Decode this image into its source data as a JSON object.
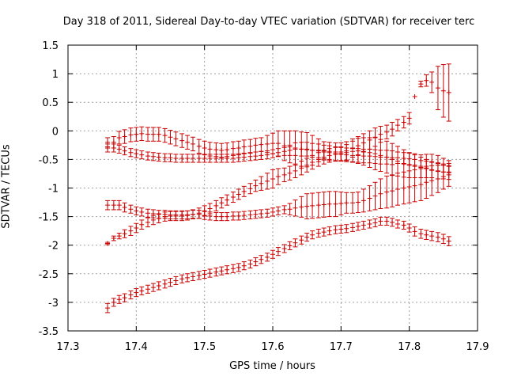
{
  "chart_data": {
    "type": "scatter",
    "title": "Day 318 of 2011, Sidereal Day-to-day VTEC variation (SDTVAR) for receiver terc",
    "xlabel": "GPS time / hours",
    "ylabel": "SDTVAR / TECUs",
    "xlim": [
      17.3,
      17.9
    ],
    "ylim": [
      -3.5,
      1.5
    ],
    "xticks": [
      "17.3",
      "17.4",
      "17.5",
      "17.6",
      "17.7",
      "17.8",
      "17.9"
    ],
    "yticks": [
      "1.5",
      "1",
      "0.5",
      "0",
      "-0.5",
      "-1",
      "-1.5",
      "-2",
      "-2.5",
      "-3",
      "-3.5"
    ],
    "grid": true,
    "color": "#cc0000",
    "series": [
      {
        "x": [
          17.358,
          17.367,
          17.375,
          17.383,
          17.392,
          17.4,
          17.408,
          17.417,
          17.425,
          17.433,
          17.442,
          17.45,
          17.458,
          17.467,
          17.475,
          17.483,
          17.492,
          17.5,
          17.508,
          17.517,
          17.525,
          17.533,
          17.542,
          17.55,
          17.558,
          17.567,
          17.575,
          17.583,
          17.592,
          17.6,
          17.608,
          17.617,
          17.625,
          17.633,
          17.642,
          17.65,
          17.658,
          17.667,
          17.675,
          17.683,
          17.692,
          17.7,
          17.708,
          17.717,
          17.725,
          17.733,
          17.742,
          17.75,
          17.758,
          17.767,
          17.775,
          17.783,
          17.792,
          17.8
        ],
        "y": [
          -0.2,
          -0.2,
          -0.12,
          -0.1,
          -0.07,
          -0.06,
          -0.05,
          -0.06,
          -0.06,
          -0.06,
          -0.08,
          -0.11,
          -0.14,
          -0.17,
          -0.2,
          -0.23,
          -0.27,
          -0.3,
          -0.32,
          -0.33,
          -0.34,
          -0.33,
          -0.31,
          -0.3,
          -0.28,
          -0.27,
          -0.25,
          -0.24,
          -0.23,
          -0.22,
          -0.22,
          -0.26,
          -0.28,
          -0.3,
          -0.32,
          -0.33,
          -0.34,
          -0.34,
          -0.35,
          -0.36,
          -0.37,
          -0.37,
          -0.35,
          -0.3,
          -0.26,
          -0.21,
          -0.16,
          -0.11,
          -0.06,
          -0.02,
          0.03,
          0.1,
          0.15,
          0.22
        ],
        "err": [
          0.08,
          0.1,
          0.11,
          0.12,
          0.12,
          0.12,
          0.12,
          0.12,
          0.12,
          0.12,
          0.12,
          0.12,
          0.12,
          0.12,
          0.12,
          0.12,
          0.12,
          0.12,
          0.12,
          0.12,
          0.12,
          0.12,
          0.12,
          0.12,
          0.12,
          0.12,
          0.12,
          0.12,
          0.15,
          0.18,
          0.22,
          0.26,
          0.28,
          0.3,
          0.3,
          0.3,
          0.26,
          0.2,
          0.16,
          0.16,
          0.16,
          0.16,
          0.16,
          0.16,
          0.16,
          0.16,
          0.16,
          0.16,
          0.14,
          0.12,
          0.12,
          0.1,
          0.1,
          0.1
        ]
      },
      {
        "x": [
          17.808,
          17.817,
          17.825,
          17.833,
          17.842,
          17.85,
          17.858
        ],
        "y": [
          0.6,
          0.82,
          0.88,
          0.85,
          0.75,
          0.7,
          0.67
        ],
        "err": [
          0.0,
          0.05,
          0.1,
          0.18,
          0.38,
          0.46,
          0.5
        ]
      },
      {
        "x": [
          17.358,
          17.367,
          17.375,
          17.383,
          17.392,
          17.4,
          17.408,
          17.417,
          17.425,
          17.433,
          17.442,
          17.45,
          17.458,
          17.467,
          17.475,
          17.483,
          17.492,
          17.5,
          17.508,
          17.517,
          17.525,
          17.533,
          17.542,
          17.55,
          17.558,
          17.567,
          17.575,
          17.583,
          17.592,
          17.6,
          17.608,
          17.617,
          17.625,
          17.633,
          17.642,
          17.65,
          17.658,
          17.667,
          17.675,
          17.683,
          17.692,
          17.7,
          17.708,
          17.717,
          17.725,
          17.733,
          17.742,
          17.75,
          17.758,
          17.767,
          17.775,
          17.783,
          17.792,
          17.8,
          17.808,
          17.817,
          17.825,
          17.833,
          17.842,
          17.85,
          17.858
        ],
        "y": [
          -0.3,
          -0.3,
          -0.32,
          -0.35,
          -0.38,
          -0.4,
          -0.42,
          -0.44,
          -0.45,
          -0.46,
          -0.47,
          -0.47,
          -0.48,
          -0.48,
          -0.48,
          -0.48,
          -0.48,
          -0.48,
          -0.48,
          -0.48,
          -0.48,
          -0.48,
          -0.48,
          -0.47,
          -0.46,
          -0.45,
          -0.44,
          -0.43,
          -0.42,
          -0.4,
          -0.38,
          -0.36,
          -0.34,
          -0.32,
          -0.32,
          -0.32,
          -0.34,
          -0.35,
          -0.37,
          -0.38,
          -0.4,
          -0.41,
          -0.42,
          -0.43,
          -0.43,
          -0.44,
          -0.44,
          -0.45,
          -0.46,
          -0.46,
          -0.47,
          -0.47,
          -0.48,
          -0.49,
          -0.5,
          -0.52,
          -0.53,
          -0.55,
          -0.57,
          -0.6,
          -0.62
        ],
        "err": [
          0.07,
          0.07,
          0.07,
          0.07,
          0.07,
          0.07,
          0.07,
          0.07,
          0.07,
          0.07,
          0.07,
          0.07,
          0.07,
          0.07,
          0.07,
          0.07,
          0.07,
          0.07,
          0.07,
          0.07,
          0.07,
          0.07,
          0.07,
          0.07,
          0.07,
          0.07,
          0.07,
          0.07,
          0.07,
          0.07,
          0.07,
          0.07,
          0.09,
          0.11,
          0.12,
          0.12,
          0.12,
          0.12,
          0.12,
          0.12,
          0.12,
          0.12,
          0.12,
          0.12,
          0.12,
          0.12,
          0.12,
          0.12,
          0.12,
          0.12,
          0.12,
          0.1,
          0.1,
          0.1,
          0.1,
          0.1,
          0.12,
          0.14,
          0.14,
          0.12,
          0.1
        ]
      },
      {
        "x": [
          17.358,
          17.367,
          17.375,
          17.383,
          17.392,
          17.4,
          17.408,
          17.417,
          17.425,
          17.433,
          17.442,
          17.45,
          17.458,
          17.467,
          17.475,
          17.483,
          17.492,
          17.5,
          17.508,
          17.517,
          17.525,
          17.533,
          17.542,
          17.55,
          17.558,
          17.567,
          17.575,
          17.583,
          17.592,
          17.6,
          17.608,
          17.617,
          17.625,
          17.633,
          17.642,
          17.65,
          17.658,
          17.667,
          17.675,
          17.683,
          17.692,
          17.7,
          17.708,
          17.717,
          17.725,
          17.733,
          17.742,
          17.75,
          17.758,
          17.767,
          17.775,
          17.783,
          17.792,
          17.8,
          17.808,
          17.817,
          17.825,
          17.833,
          17.842,
          17.85,
          17.858
        ],
        "y": [
          -1.3,
          -1.3,
          -1.3,
          -1.34,
          -1.37,
          -1.4,
          -1.42,
          -1.44,
          -1.45,
          -1.46,
          -1.46,
          -1.47,
          -1.47,
          -1.47,
          -1.47,
          -1.46,
          -1.46,
          -1.48,
          -1.49,
          -1.5,
          -1.5,
          -1.5,
          -1.49,
          -1.49,
          -1.48,
          -1.47,
          -1.46,
          -1.45,
          -1.44,
          -1.42,
          -1.4,
          -1.38,
          -1.37,
          -1.35,
          -1.33,
          -1.32,
          -1.31,
          -1.3,
          -1.29,
          -1.28,
          -1.28,
          -1.27,
          -1.26,
          -1.26,
          -1.25,
          -1.22,
          -1.18,
          -1.14,
          -1.1,
          -1.07,
          -1.05,
          -1.02,
          -1.0,
          -0.98,
          -0.96,
          -0.94,
          -0.9,
          -0.87,
          -0.84,
          -0.8,
          -0.77
        ],
        "err": [
          0.08,
          0.08,
          0.08,
          0.08,
          0.07,
          0.07,
          0.07,
          0.07,
          0.07,
          0.07,
          0.07,
          0.07,
          0.07,
          0.07,
          0.07,
          0.07,
          0.07,
          0.07,
          0.07,
          0.07,
          0.07,
          0.07,
          0.07,
          0.07,
          0.07,
          0.07,
          0.07,
          0.07,
          0.07,
          0.07,
          0.07,
          0.07,
          0.1,
          0.14,
          0.18,
          0.22,
          0.22,
          0.22,
          0.22,
          0.22,
          0.22,
          0.2,
          0.18,
          0.18,
          0.18,
          0.2,
          0.22,
          0.24,
          0.26,
          0.28,
          0.28,
          0.28,
          0.28,
          0.28,
          0.28,
          0.28,
          0.28,
          0.26,
          0.24,
          0.22,
          0.2
        ]
      },
      {
        "x": [
          17.358,
          17.367,
          17.375,
          17.383,
          17.392,
          17.4,
          17.408,
          17.417,
          17.425,
          17.433,
          17.442,
          17.45,
          17.458,
          17.467,
          17.475,
          17.483,
          17.492,
          17.5,
          17.508,
          17.517,
          17.525,
          17.533,
          17.542,
          17.55,
          17.558,
          17.567,
          17.575,
          17.583,
          17.592,
          17.6,
          17.608,
          17.617,
          17.625,
          17.633,
          17.642,
          17.65,
          17.658,
          17.667,
          17.675,
          17.683,
          17.692,
          17.7,
          17.708,
          17.717,
          17.725,
          17.733,
          17.742,
          17.75,
          17.758,
          17.767,
          17.775,
          17.783,
          17.792,
          17.8,
          17.808,
          17.817,
          17.825,
          17.833,
          17.842,
          17.85,
          17.858
        ],
        "y": [
          -1.97,
          -1.88,
          -1.84,
          -1.8,
          -1.75,
          -1.7,
          -1.64,
          -1.6,
          -1.56,
          -1.53,
          -1.5,
          -1.49,
          -1.49,
          -1.49,
          -1.48,
          -1.46,
          -1.44,
          -1.4,
          -1.36,
          -1.31,
          -1.26,
          -1.21,
          -1.16,
          -1.11,
          -1.06,
          -1.01,
          -0.96,
          -0.92,
          -0.88,
          -0.84,
          -0.8,
          -0.77,
          -0.74,
          -0.7,
          -0.65,
          -0.6,
          -0.55,
          -0.5,
          -0.46,
          -0.43,
          -0.41,
          -0.4,
          -0.38,
          -0.36,
          -0.35,
          -0.36,
          -0.38,
          -0.4,
          -0.43,
          -0.46,
          -0.5,
          -0.53,
          -0.57,
          -0.6,
          -0.62,
          -0.64,
          -0.66,
          -0.68,
          -0.7,
          -0.72,
          -0.73
        ],
        "err": [
          0.02,
          0.04,
          0.05,
          0.07,
          0.08,
          0.08,
          0.08,
          0.08,
          0.08,
          0.08,
          0.08,
          0.08,
          0.08,
          0.08,
          0.08,
          0.08,
          0.09,
          0.09,
          0.09,
          0.09,
          0.09,
          0.09,
          0.09,
          0.09,
          0.09,
          0.09,
          0.1,
          0.12,
          0.14,
          0.16,
          0.14,
          0.12,
          0.12,
          0.12,
          0.12,
          0.12,
          0.12,
          0.12,
          0.12,
          0.12,
          0.12,
          0.12,
          0.14,
          0.18,
          0.22,
          0.24,
          0.26,
          0.28,
          0.28,
          0.28,
          0.28,
          0.26,
          0.24,
          0.22,
          0.2,
          0.18,
          0.16,
          0.14,
          0.14,
          0.12,
          0.12
        ]
      },
      {
        "x": [
          17.358,
          17.367,
          17.375,
          17.383,
          17.392,
          17.4,
          17.408,
          17.417,
          17.425,
          17.433,
          17.442,
          17.45,
          17.458,
          17.467,
          17.475,
          17.483,
          17.492,
          17.5,
          17.508,
          17.517,
          17.525,
          17.533,
          17.542,
          17.55,
          17.558,
          17.567,
          17.575,
          17.583,
          17.592,
          17.6,
          17.608,
          17.617,
          17.625,
          17.633,
          17.642,
          17.65,
          17.658,
          17.667,
          17.675,
          17.683,
          17.692,
          17.7,
          17.708,
          17.717,
          17.725,
          17.733,
          17.742,
          17.75,
          17.758,
          17.767,
          17.775,
          17.783,
          17.792,
          17.8,
          17.808,
          17.817,
          17.825,
          17.833,
          17.842,
          17.85,
          17.858
        ],
        "y": [
          -3.1,
          -3.0,
          -2.95,
          -2.92,
          -2.87,
          -2.83,
          -2.8,
          -2.77,
          -2.74,
          -2.71,
          -2.68,
          -2.65,
          -2.62,
          -2.59,
          -2.57,
          -2.55,
          -2.53,
          -2.51,
          -2.49,
          -2.47,
          -2.45,
          -2.43,
          -2.41,
          -2.39,
          -2.36,
          -2.33,
          -2.29,
          -2.25,
          -2.21,
          -2.16,
          -2.11,
          -2.06,
          -2.01,
          -1.96,
          -1.91,
          -1.86,
          -1.82,
          -1.79,
          -1.77,
          -1.75,
          -1.73,
          -1.72,
          -1.71,
          -1.69,
          -1.67,
          -1.65,
          -1.63,
          -1.61,
          -1.58,
          -1.58,
          -1.6,
          -1.63,
          -1.65,
          -1.7,
          -1.76,
          -1.8,
          -1.82,
          -1.84,
          -1.86,
          -1.89,
          -1.93
        ],
        "err": [
          0.08,
          0.07,
          0.07,
          0.07,
          0.07,
          0.07,
          0.07,
          0.07,
          0.07,
          0.07,
          0.07,
          0.07,
          0.07,
          0.07,
          0.07,
          0.07,
          0.07,
          0.07,
          0.07,
          0.07,
          0.07,
          0.07,
          0.07,
          0.07,
          0.07,
          0.07,
          0.07,
          0.07,
          0.07,
          0.07,
          0.07,
          0.07,
          0.07,
          0.07,
          0.07,
          0.07,
          0.07,
          0.07,
          0.07,
          0.07,
          0.07,
          0.07,
          0.07,
          0.07,
          0.07,
          0.07,
          0.07,
          0.07,
          0.07,
          0.07,
          0.07,
          0.07,
          0.07,
          0.07,
          0.08,
          0.08,
          0.08,
          0.08,
          0.08,
          0.08,
          0.08
        ]
      }
    ]
  }
}
